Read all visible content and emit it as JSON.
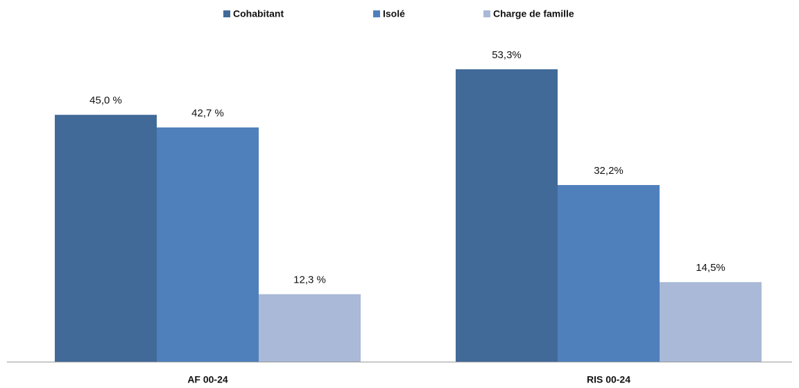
{
  "chart_data": {
    "type": "bar",
    "categories": [
      "AF 00-24",
      "RIS 00-24"
    ],
    "series": [
      {
        "name": "Cohabitant",
        "color": "#416a99",
        "values": [
          45.0,
          53.3
        ],
        "value_labels": [
          "45,0 %",
          "53,3%"
        ]
      },
      {
        "name": "Isolé",
        "color": "#4f80bc",
        "values": [
          42.7,
          32.2
        ],
        "value_labels": [
          "42,7 %",
          "32,2%"
        ]
      },
      {
        "name": "Charge de famille",
        "color": "#a9b9d7",
        "values": [
          12.3,
          14.5
        ],
        "value_labels": [
          "12,3 %",
          "14,5%"
        ]
      }
    ],
    "legend": "top"
  }
}
